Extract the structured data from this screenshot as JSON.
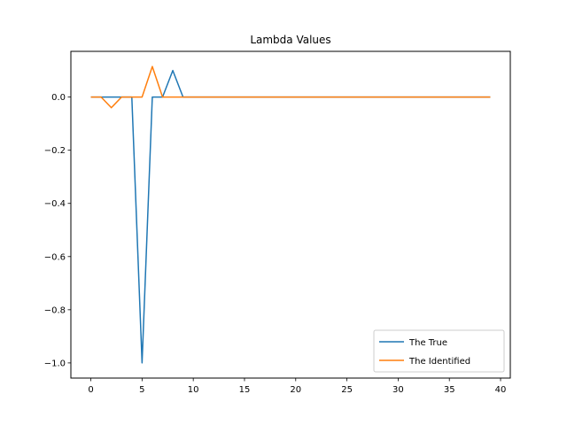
{
  "chart_data": {
    "type": "line",
    "title": "Lambda Values",
    "xlabel": "",
    "ylabel": "",
    "xlim": [
      -1.95,
      40.95
    ],
    "ylim": [
      -1.057,
      0.172
    ],
    "xticks": [
      0,
      5,
      10,
      15,
      20,
      25,
      30,
      35,
      40
    ],
    "xtick_labels": [
      "0",
      "5",
      "10",
      "15",
      "20",
      "25",
      "30",
      "35",
      "40"
    ],
    "yticks": [
      0.0,
      -0.2,
      -0.4,
      -0.6,
      -0.8,
      -1.0
    ],
    "ytick_labels": [
      "0.0",
      "−0.2",
      "−0.4",
      "−0.6",
      "−0.8",
      "−1.0"
    ],
    "grid": false,
    "legend_position": "lower-right",
    "x": [
      0,
      1,
      2,
      3,
      4,
      5,
      6,
      7,
      8,
      9,
      10,
      11,
      12,
      13,
      14,
      15,
      16,
      17,
      18,
      19,
      20,
      21,
      22,
      23,
      24,
      25,
      26,
      27,
      28,
      29,
      30,
      31,
      32,
      33,
      34,
      35,
      36,
      37,
      38,
      39
    ],
    "series": [
      {
        "name": "The True",
        "color": "#1f77b4",
        "values": [
          0,
          0,
          0,
          0,
          0,
          -1.0,
          0,
          0,
          0.1,
          0,
          0,
          0,
          0,
          0,
          0,
          0,
          0,
          0,
          0,
          0,
          0,
          0,
          0,
          0,
          0,
          0,
          0,
          0,
          0,
          0,
          0,
          0,
          0,
          0,
          0,
          0,
          0,
          0,
          0,
          0
        ]
      },
      {
        "name": "The Identified",
        "color": "#ff7f0e",
        "values": [
          0,
          0,
          -0.04,
          0,
          0,
          0,
          0.115,
          0,
          0,
          0,
          0,
          0,
          0,
          0,
          0,
          0,
          0,
          0,
          0,
          0,
          0,
          0,
          0,
          0,
          0,
          0,
          0,
          0,
          0,
          0,
          0,
          0,
          0,
          0,
          0,
          0,
          0,
          0,
          0,
          0
        ]
      }
    ]
  }
}
